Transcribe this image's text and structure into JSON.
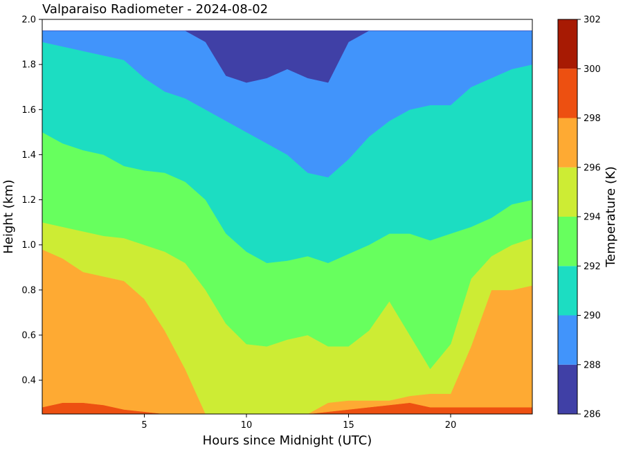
{
  "chart_data": {
    "type": "heatmap",
    "title": "Valparaiso Radiometer - 2024-08-02",
    "xlabel": "Hours since Midnight (UTC)",
    "ylabel": "Height (km)",
    "xlim": [
      0,
      24
    ],
    "ylim": [
      0.25,
      2.0
    ],
    "data_top_km": 1.95,
    "x_ticks": [
      5,
      10,
      15,
      20
    ],
    "y_ticks": [
      0.4,
      0.6,
      0.8,
      1.0,
      1.2,
      1.4,
      1.6,
      1.8,
      2.0
    ],
    "x_tick_labels": [
      "5",
      "10",
      "15",
      "20"
    ],
    "y_tick_labels": [
      "0.4",
      "0.6",
      "0.8",
      "1.0",
      "1.2",
      "1.4",
      "1.6",
      "1.8",
      "2.0"
    ],
    "colorbar": {
      "label": "Temperature (K)",
      "levels": [
        286,
        288,
        290,
        292,
        294,
        296,
        298,
        300,
        302
      ],
      "level_labels": [
        "286",
        "288",
        "290",
        "292",
        "294",
        "296",
        "298",
        "300",
        "302"
      ],
      "colors": [
        "#4040a6",
        "#4194fb",
        "#1cddc2",
        "#67ff5e",
        "#cdec34",
        "#feaa33",
        "#ed5011",
        "#a71a03"
      ]
    },
    "contour_boundaries_km": {
      "hours": [
        0,
        1,
        2,
        3,
        4,
        5,
        6,
        7,
        8,
        9,
        10,
        11,
        12,
        13,
        14,
        15,
        16,
        17,
        18,
        19,
        20,
        21,
        22,
        23,
        24
      ],
      "298": [
        0.28,
        0.3,
        0.3,
        0.29,
        0.27,
        0.26,
        0.25,
        0.25,
        0.25,
        0.25,
        0.25,
        0.25,
        0.25,
        0.25,
        0.26,
        0.27,
        0.28,
        0.29,
        0.3,
        0.28,
        0.28,
        0.28,
        0.28,
        0.28,
        0.28
      ],
      "296": [
        0.98,
        0.94,
        0.88,
        0.86,
        0.84,
        0.76,
        0.62,
        0.45,
        0.25,
        0.25,
        0.25,
        0.25,
        0.25,
        0.25,
        0.3,
        0.31,
        0.31,
        0.31,
        0.33,
        0.34,
        0.34,
        0.55,
        0.8,
        0.8,
        0.82
      ],
      "294": [
        1.1,
        1.08,
        1.06,
        1.04,
        1.03,
        1.0,
        0.97,
        0.92,
        0.8,
        0.65,
        0.56,
        0.55,
        0.58,
        0.6,
        0.55,
        0.55,
        0.62,
        0.75,
        0.6,
        0.45,
        0.56,
        0.85,
        0.95,
        1.0,
        1.03
      ],
      "292": [
        1.5,
        1.45,
        1.42,
        1.4,
        1.35,
        1.33,
        1.32,
        1.28,
        1.2,
        1.05,
        0.97,
        0.92,
        0.93,
        0.95,
        0.92,
        0.96,
        1.0,
        1.05,
        1.05,
        1.02,
        1.05,
        1.08,
        1.12,
        1.18,
        1.2
      ],
      "290": [
        1.9,
        1.88,
        1.86,
        1.84,
        1.82,
        1.74,
        1.68,
        1.65,
        1.6,
        1.55,
        1.5,
        1.45,
        1.4,
        1.32,
        1.3,
        1.38,
        1.48,
        1.55,
        1.6,
        1.62,
        1.62,
        1.7,
        1.74,
        1.78,
        1.8
      ],
      "288": [
        1.95,
        1.95,
        1.95,
        1.95,
        1.95,
        1.95,
        1.95,
        1.95,
        1.9,
        1.75,
        1.72,
        1.74,
        1.78,
        1.74,
        1.72,
        1.9,
        1.95,
        1.95,
        1.95,
        1.95,
        1.95,
        1.95,
        1.95,
        1.95,
        1.95
      ]
    }
  }
}
